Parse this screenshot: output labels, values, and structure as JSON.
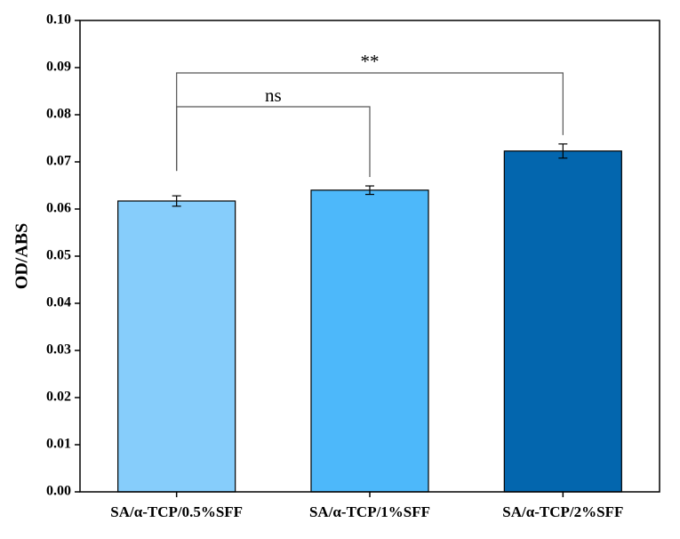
{
  "chart_data": {
    "type": "bar",
    "ylabel": "OD/ABS",
    "xlabel": "",
    "ylim": [
      0,
      0.1
    ],
    "yticks": [
      "0.00",
      "0.01",
      "0.02",
      "0.03",
      "0.04",
      "0.05",
      "0.06",
      "0.07",
      "0.08",
      "0.09",
      "0.10"
    ],
    "categories": [
      "SA/α-TCP/0.5%SFF",
      "SA/α-TCP/1%SFF",
      "SA/α-TCP/2%SFF"
    ],
    "values": [
      0.0617,
      0.064,
      0.0723
    ],
    "errors": [
      0.0011,
      0.0009,
      0.0015
    ],
    "colors": [
      "#86CDFB",
      "#4DB8FA",
      "#0366AE"
    ],
    "grid": false,
    "significance": [
      {
        "from": 0,
        "to": 1,
        "label": "ns"
      },
      {
        "from": 0,
        "to": 2,
        "label": "**"
      }
    ]
  }
}
